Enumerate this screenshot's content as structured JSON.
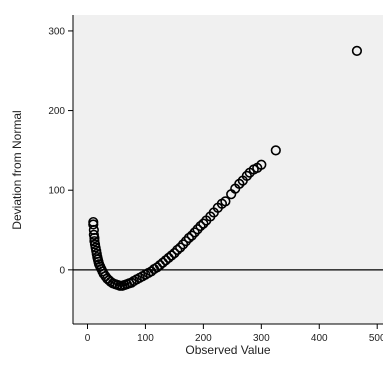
{
  "chart_data": {
    "type": "scatter",
    "title": "",
    "xlabel": "Observed Value",
    "ylabel": "Deviation from Normal",
    "xlim": [
      -25,
      510
    ],
    "ylim": [
      -68,
      320
    ],
    "x_ticks": [
      0,
      100,
      200,
      300,
      400,
      500
    ],
    "y_ticks": [
      0,
      100,
      200,
      300
    ],
    "reference_line_y": 0,
    "grid": false,
    "background_color": "#f0f0f0",
    "marker": "open-circle",
    "marker_color": "#000000",
    "series": [
      {
        "points": [
          [
            10,
            60
          ],
          [
            10,
            57
          ],
          [
            11,
            50
          ],
          [
            11,
            44
          ],
          [
            12,
            40
          ],
          [
            12,
            36
          ],
          [
            13,
            32
          ],
          [
            14,
            28
          ],
          [
            15,
            24
          ],
          [
            16,
            20
          ],
          [
            17,
            16
          ],
          [
            18,
            13
          ],
          [
            19,
            10
          ],
          [
            20,
            7
          ],
          [
            22,
            4
          ],
          [
            24,
            1
          ],
          [
            26,
            -2
          ],
          [
            28,
            -5
          ],
          [
            31,
            -8
          ],
          [
            34,
            -11
          ],
          [
            37,
            -13
          ],
          [
            40,
            -15
          ],
          [
            44,
            -17
          ],
          [
            48,
            -18
          ],
          [
            52,
            -19
          ],
          [
            56,
            -20
          ],
          [
            60,
            -20
          ],
          [
            64,
            -19
          ],
          [
            68,
            -18
          ],
          [
            72,
            -17
          ],
          [
            76,
            -16
          ],
          [
            80,
            -14
          ],
          [
            85,
            -12
          ],
          [
            90,
            -10
          ],
          [
            95,
            -8
          ],
          [
            100,
            -6
          ],
          [
            105,
            -4
          ],
          [
            110,
            -2
          ],
          [
            115,
            1
          ],
          [
            120,
            3
          ],
          [
            125,
            6
          ],
          [
            130,
            9
          ],
          [
            135,
            12
          ],
          [
            140,
            15
          ],
          [
            145,
            18
          ],
          [
            150,
            21
          ],
          [
            155,
            25
          ],
          [
            160,
            28
          ],
          [
            165,
            32
          ],
          [
            170,
            36
          ],
          [
            175,
            40
          ],
          [
            180,
            43
          ],
          [
            185,
            47
          ],
          [
            190,
            51
          ],
          [
            195,
            55
          ],
          [
            200,
            58
          ],
          [
            205,
            62
          ],
          [
            212,
            67
          ],
          [
            218,
            72
          ],
          [
            225,
            78
          ],
          [
            232,
            83
          ],
          [
            238,
            86
          ],
          [
            248,
            95
          ],
          [
            255,
            102
          ],
          [
            262,
            108
          ],
          [
            268,
            112
          ],
          [
            275,
            118
          ],
          [
            280,
            122
          ],
          [
            287,
            126
          ],
          [
            293,
            128
          ],
          [
            300,
            132
          ],
          [
            325,
            150
          ],
          [
            465,
            275
          ]
        ]
      }
    ]
  }
}
